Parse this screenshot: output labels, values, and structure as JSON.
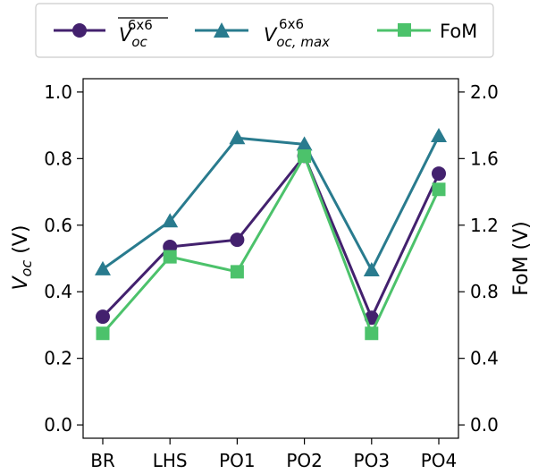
{
  "chart_data": {
    "type": "line",
    "categories": [
      "BR",
      "LHS",
      "PO1",
      "PO2",
      "PO3",
      "PO4"
    ],
    "series": [
      {
        "name": "Voc_mean_6x6",
        "legend_label": {
          "base": "V",
          "sub": "oc",
          "sup": "6x6",
          "overline": true
        },
        "axis": "left",
        "color": "#43216e",
        "marker": "circle",
        "values": [
          0.325,
          0.535,
          0.556,
          0.808,
          0.322,
          0.755
        ]
      },
      {
        "name": "Voc_max_6x6",
        "legend_label": {
          "base": "V",
          "sub": "oc, max",
          "sup": "6x6",
          "overline": false
        },
        "axis": "left",
        "color": "#297b8e",
        "marker": "triangle",
        "values": [
          0.468,
          0.612,
          0.862,
          0.843,
          0.465,
          0.868
        ]
      },
      {
        "name": "FoM",
        "legend_label": {
          "base": "FoM"
        },
        "axis": "right",
        "color": "#4cc26b",
        "marker": "square",
        "values": [
          0.55,
          1.01,
          0.92,
          1.615,
          0.55,
          1.415
        ]
      }
    ],
    "left_axis": {
      "label": {
        "base": "V",
        "sub": "oc",
        "unit": " (V)"
      },
      "ylim": [
        -0.04,
        1.04
      ],
      "ticks": [
        "0.0",
        "0.2",
        "0.4",
        "0.6",
        "0.8",
        "1.0"
      ]
    },
    "right_axis": {
      "label": "FoM (V)",
      "ylim": [
        -0.08,
        2.08
      ],
      "ticks": [
        "0.0",
        "0.4",
        "0.8",
        "1.2",
        "1.6",
        "2.0"
      ]
    },
    "legend_position": "top-center",
    "grid": false
  }
}
